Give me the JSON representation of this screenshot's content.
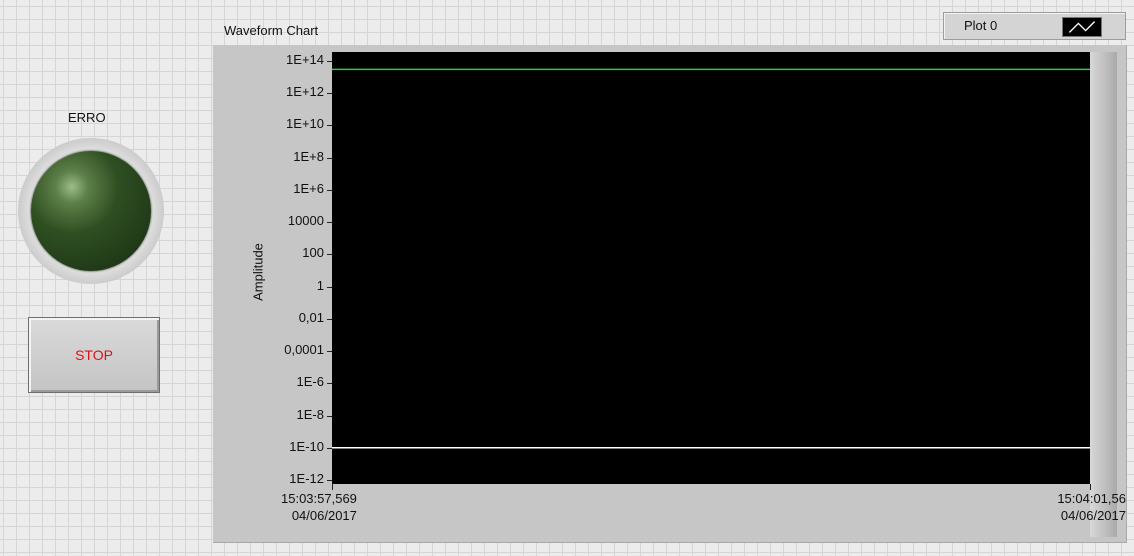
{
  "led": {
    "label": "ERRO",
    "color": "#2f4f22"
  },
  "stop_button": {
    "label": "STOP",
    "text_color": "#e01010"
  },
  "legend": {
    "plot_name": "Plot 0",
    "line_color": "#ffffff"
  },
  "chart_data": {
    "type": "line",
    "title": "Waveform Chart",
    "ylabel": "Amplitude",
    "yscale": "log",
    "ylim": [
      1e-12,
      100000000000000.0
    ],
    "y_ticks": [
      "1E+14",
      "1E+12",
      "1E+10",
      "1E+8",
      "1E+6",
      "10000",
      "100",
      "1",
      "0,01",
      "0,0001",
      "1E-6",
      "1E-8",
      "1E-10",
      "1E-12"
    ],
    "x_ticks": [
      {
        "time": "15:03:57,569",
        "date": "04/06/2017"
      },
      {
        "time": "15:04:01,56",
        "date": "04/06/2017"
      }
    ],
    "series": [
      {
        "color": "#38c838",
        "values": [
          30000000000000.0,
          30000000000000.0
        ]
      },
      {
        "color": "#ffffff",
        "values": [
          1e-10,
          1e-10
        ]
      }
    ],
    "background": "#000000"
  }
}
